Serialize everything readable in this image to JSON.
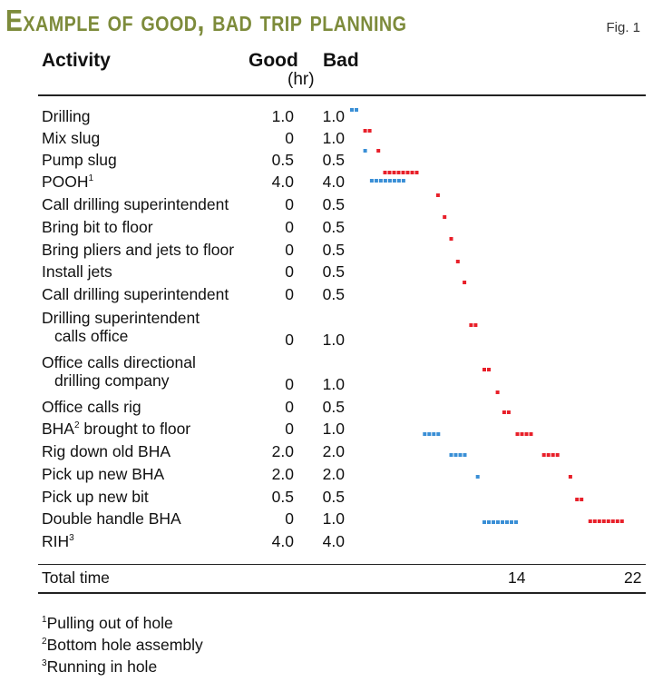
{
  "title": "Example of good, bad trip planning",
  "fig_label": "Fig. 1",
  "headers": {
    "activity": "Activity",
    "good": "Good",
    "bad": "Bad",
    "unit": "(hr)"
  },
  "colors": {
    "good": "#3a8fd6",
    "bad": "#e8202a",
    "title": "#7d8b3b"
  },
  "rows": [
    {
      "activity": "Drilling",
      "sup": "",
      "good": "1.0",
      "bad": "1.0"
    },
    {
      "activity": "Mix slug",
      "sup": "",
      "good": "0",
      "bad": "1.0"
    },
    {
      "activity": "Pump slug",
      "sup": "",
      "good": "0.5",
      "bad": "0.5"
    },
    {
      "activity": "POOH",
      "sup": "1",
      "good": "4.0",
      "bad": "4.0"
    },
    {
      "activity": "Call drilling superintendent",
      "sup": "",
      "good": "0",
      "bad": "0.5"
    },
    {
      "activity": "Bring bit to floor",
      "sup": "",
      "good": "0",
      "bad": "0.5"
    },
    {
      "activity": "Bring pliers and jets to floor",
      "sup": "",
      "good": "0",
      "bad": "0.5"
    },
    {
      "activity": "Install jets",
      "sup": "",
      "good": "0",
      "bad": "0.5"
    },
    {
      "activity": "Call drilling superintendent",
      "sup": "",
      "good": "0",
      "bad": "0.5"
    },
    {
      "activity": "Drilling superintendent",
      "activity2": "calls office",
      "sup": "",
      "good": "0",
      "bad": "1.0"
    },
    {
      "activity": "Office calls directional",
      "activity2": "drilling company",
      "sup": "",
      "good": "0",
      "bad": "1.0"
    },
    {
      "activity": "Office calls rig",
      "sup": "",
      "good": "0",
      "bad": "0.5"
    },
    {
      "activity": "BHA",
      "sup": "2",
      "activity_tail": " brought to floor",
      "good": "0",
      "bad": "1.0"
    },
    {
      "activity": "Rig down old BHA",
      "sup": "",
      "good": "2.0",
      "bad": "2.0"
    },
    {
      "activity": "Pick up new BHA",
      "sup": "",
      "good": "2.0",
      "bad": "2.0"
    },
    {
      "activity": "Pick up new bit",
      "sup": "",
      "good": "0.5",
      "bad": "0.5"
    },
    {
      "activity": "Double handle BHA",
      "sup": "",
      "good": "0",
      "bad": "1.0"
    },
    {
      "activity": "RIH",
      "sup": "3",
      "good": "4.0",
      "bad": "4.0"
    }
  ],
  "total": {
    "label": "Total time",
    "good": "14",
    "bad": "22"
  },
  "footnotes": [
    {
      "sup": "1",
      "text": "Pulling out of hole"
    },
    {
      "sup": "2",
      "text": "Bottom hole assembly"
    },
    {
      "sup": "3",
      "text": "Running in hole"
    }
  ],
  "chart_data": {
    "type": "gantt",
    "unit": "hr",
    "series": [
      {
        "name": "Good",
        "color": "#3a8fd6",
        "segments": [
          {
            "activity": "Drilling",
            "start": 0,
            "duration": 1.0
          },
          {
            "activity": "Pump slug",
            "start": 1.0,
            "duration": 0.5
          },
          {
            "activity": "POOH",
            "start": 1.5,
            "duration": 4.0
          },
          {
            "activity": "Rig down old BHA",
            "start": 5.5,
            "duration": 2.0
          },
          {
            "activity": "Pick up new BHA",
            "start": 7.5,
            "duration": 2.0
          },
          {
            "activity": "Pick up new bit",
            "start": 9.5,
            "duration": 0.5
          },
          {
            "activity": "RIH",
            "start": 10.0,
            "duration": 4.0
          }
        ],
        "total": 14
      },
      {
        "name": "Bad",
        "color": "#e8202a",
        "segments": [
          {
            "activity": "Drilling",
            "start": 0,
            "duration": 1.0
          },
          {
            "activity": "Mix slug",
            "start": 1.0,
            "duration": 1.0
          },
          {
            "activity": "Pump slug",
            "start": 2.0,
            "duration": 0.5
          },
          {
            "activity": "POOH",
            "start": 2.5,
            "duration": 4.0
          },
          {
            "activity": "Call drilling superintendent",
            "start": 6.5,
            "duration": 0.5
          },
          {
            "activity": "Bring bit to floor",
            "start": 7.0,
            "duration": 0.5
          },
          {
            "activity": "Bring pliers and jets to floor",
            "start": 7.5,
            "duration": 0.5
          },
          {
            "activity": "Install jets",
            "start": 8.0,
            "duration": 0.5
          },
          {
            "activity": "Call drilling superintendent",
            "start": 8.5,
            "duration": 0.5
          },
          {
            "activity": "Drilling superintendent calls office",
            "start": 9.0,
            "duration": 1.0
          },
          {
            "activity": "Office calls directional drilling company",
            "start": 10.0,
            "duration": 1.0
          },
          {
            "activity": "Office calls rig",
            "start": 11.0,
            "duration": 0.5
          },
          {
            "activity": "BHA brought to floor",
            "start": 11.5,
            "duration": 1.0
          },
          {
            "activity": "Rig down old BHA",
            "start": 12.5,
            "duration": 2.0
          },
          {
            "activity": "Pick up new BHA",
            "start": 14.5,
            "duration": 2.0
          },
          {
            "activity": "Pick up new bit",
            "start": 16.5,
            "duration": 0.5
          },
          {
            "activity": "Double handle BHA",
            "start": 17.0,
            "duration": 1.0
          },
          {
            "activity": "RIH",
            "start": 18.0,
            "duration": 4.0
          }
        ],
        "total": 22
      }
    ],
    "xlim": [
      0,
      22
    ]
  }
}
